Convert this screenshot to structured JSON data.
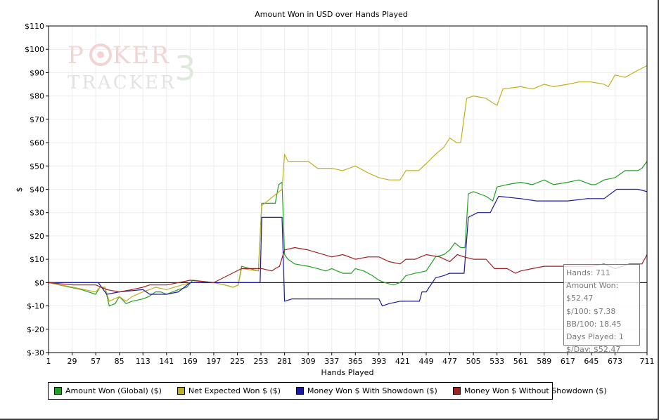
{
  "chart_data": {
    "type": "line",
    "title": "Amount Won in USD over Hands Played",
    "xlabel": "Hands Played",
    "ylabel": "$",
    "xlim": [
      1,
      711
    ],
    "ylim": [
      -30,
      110
    ],
    "x_ticks": [
      1,
      29,
      57,
      85,
      113,
      141,
      169,
      197,
      225,
      253,
      281,
      309,
      337,
      365,
      393,
      421,
      449,
      477,
      505,
      533,
      561,
      589,
      617,
      645,
      673,
      711
    ],
    "y_ticks": [
      {
        "value": 110,
        "label": "$110"
      },
      {
        "value": 100,
        "label": "$100"
      },
      {
        "value": 90,
        "label": "$90"
      },
      {
        "value": 80,
        "label": "$80"
      },
      {
        "value": 70,
        "label": "$70"
      },
      {
        "value": 60,
        "label": "$60"
      },
      {
        "value": 50,
        "label": "$50"
      },
      {
        "value": 40,
        "label": "$40"
      },
      {
        "value": 30,
        "label": "$30"
      },
      {
        "value": 20,
        "label": "$20"
      },
      {
        "value": 10,
        "label": "$10"
      },
      {
        "value": 0,
        "label": "$0"
      },
      {
        "value": -10,
        "label": "$-10"
      },
      {
        "value": -20,
        "label": "$-20"
      },
      {
        "value": -30,
        "label": "$-30"
      }
    ],
    "grid": true,
    "legend_position": "bottom",
    "series": [
      {
        "name": "Amount Won (Global) ($)",
        "color": "#22a022",
        "points": [
          [
            1,
            0
          ],
          [
            20,
            -1.5
          ],
          [
            40,
            -3
          ],
          [
            57,
            -5
          ],
          [
            62,
            -2
          ],
          [
            68,
            -2
          ],
          [
            73,
            -10
          ],
          [
            80,
            -9
          ],
          [
            85,
            -6
          ],
          [
            93,
            -9
          ],
          [
            100,
            -8
          ],
          [
            113,
            -7
          ],
          [
            120,
            -6
          ],
          [
            128,
            -4
          ],
          [
            134,
            -4
          ],
          [
            141,
            -5
          ],
          [
            155,
            -3
          ],
          [
            165,
            -2
          ],
          [
            172,
            1
          ],
          [
            197,
            0
          ],
          [
            210,
            -1
          ],
          [
            220,
            -2
          ],
          [
            226,
            -1
          ],
          [
            230,
            7
          ],
          [
            240,
            6
          ],
          [
            250,
            5
          ],
          [
            254,
            34
          ],
          [
            265,
            34
          ],
          [
            270,
            34
          ],
          [
            274,
            42
          ],
          [
            278,
            43
          ],
          [
            281,
            12
          ],
          [
            285,
            10
          ],
          [
            293,
            8
          ],
          [
            309,
            7
          ],
          [
            320,
            6
          ],
          [
            330,
            5
          ],
          [
            337,
            6
          ],
          [
            350,
            4
          ],
          [
            360,
            4
          ],
          [
            365,
            6
          ],
          [
            375,
            5
          ],
          [
            385,
            3
          ],
          [
            393,
            1
          ],
          [
            400,
            0
          ],
          [
            410,
            -1
          ],
          [
            418,
            0
          ],
          [
            425,
            3
          ],
          [
            436,
            4
          ],
          [
            449,
            5
          ],
          [
            460,
            11
          ],
          [
            470,
            12
          ],
          [
            477,
            14
          ],
          [
            483,
            17
          ],
          [
            490,
            15
          ],
          [
            495,
            15
          ],
          [
            499,
            38
          ],
          [
            505,
            39
          ],
          [
            520,
            37
          ],
          [
            528,
            35
          ],
          [
            533,
            41
          ],
          [
            545,
            42
          ],
          [
            561,
            43
          ],
          [
            575,
            42
          ],
          [
            589,
            44
          ],
          [
            600,
            42
          ],
          [
            617,
            43
          ],
          [
            630,
            44
          ],
          [
            645,
            42
          ],
          [
            650,
            42
          ],
          [
            660,
            44
          ],
          [
            673,
            45
          ],
          [
            685,
            48
          ],
          [
            700,
            48
          ],
          [
            705,
            49
          ],
          [
            711,
            52
          ]
        ]
      },
      {
        "name": "Net Expected Won $ ($)",
        "color": "#c0b020",
        "points": [
          [
            1,
            0
          ],
          [
            30,
            -2
          ],
          [
            57,
            -4
          ],
          [
            62,
            -2
          ],
          [
            68,
            -2
          ],
          [
            73,
            -8
          ],
          [
            85,
            -6
          ],
          [
            93,
            -8
          ],
          [
            100,
            -6
          ],
          [
            113,
            -4
          ],
          [
            121,
            -3
          ],
          [
            128,
            -2
          ],
          [
            141,
            -3
          ],
          [
            150,
            -2
          ],
          [
            169,
            0
          ],
          [
            197,
            0
          ],
          [
            210,
            -1
          ],
          [
            220,
            -2
          ],
          [
            226,
            -1
          ],
          [
            230,
            6
          ],
          [
            250,
            5
          ],
          [
            254,
            33
          ],
          [
            278,
            40
          ],
          [
            281,
            55
          ],
          [
            285,
            52
          ],
          [
            309,
            52
          ],
          [
            320,
            49
          ],
          [
            337,
            49
          ],
          [
            350,
            48
          ],
          [
            365,
            50
          ],
          [
            380,
            47
          ],
          [
            393,
            45
          ],
          [
            405,
            44
          ],
          [
            418,
            44
          ],
          [
            425,
            48
          ],
          [
            440,
            48
          ],
          [
            449,
            51
          ],
          [
            460,
            55
          ],
          [
            470,
            58
          ],
          [
            477,
            62
          ],
          [
            485,
            60
          ],
          [
            490,
            60
          ],
          [
            497,
            79
          ],
          [
            505,
            80
          ],
          [
            520,
            79
          ],
          [
            528,
            77
          ],
          [
            533,
            76
          ],
          [
            540,
            83
          ],
          [
            561,
            84
          ],
          [
            575,
            83
          ],
          [
            589,
            85
          ],
          [
            600,
            84
          ],
          [
            617,
            85
          ],
          [
            630,
            86
          ],
          [
            645,
            86
          ],
          [
            660,
            85
          ],
          [
            665,
            84
          ],
          [
            673,
            89
          ],
          [
            685,
            88
          ],
          [
            700,
            91
          ],
          [
            711,
            93
          ]
        ]
      },
      {
        "name": "Money Won $ With Showdown ($)",
        "color": "#1a1aa0",
        "points": [
          [
            1,
            0
          ],
          [
            60,
            0
          ],
          [
            70,
            -5
          ],
          [
            85,
            -4
          ],
          [
            113,
            -3
          ],
          [
            121,
            -5
          ],
          [
            141,
            -5
          ],
          [
            155,
            -4
          ],
          [
            169,
            0
          ],
          [
            197,
            0
          ],
          [
            225,
            0
          ],
          [
            252,
            0
          ],
          [
            254,
            28
          ],
          [
            278,
            28
          ],
          [
            281,
            -8
          ],
          [
            290,
            -7
          ],
          [
            309,
            -7
          ],
          [
            337,
            -7
          ],
          [
            365,
            -7
          ],
          [
            393,
            -7
          ],
          [
            397,
            -10
          ],
          [
            405,
            -9
          ],
          [
            418,
            -8
          ],
          [
            441,
            -8
          ],
          [
            444,
            -4
          ],
          [
            449,
            -4
          ],
          [
            460,
            2
          ],
          [
            470,
            3
          ],
          [
            477,
            4
          ],
          [
            485,
            4
          ],
          [
            494,
            4
          ],
          [
            499,
            28
          ],
          [
            510,
            30
          ],
          [
            525,
            30
          ],
          [
            535,
            37
          ],
          [
            561,
            36
          ],
          [
            580,
            35
          ],
          [
            600,
            35
          ],
          [
            617,
            35
          ],
          [
            640,
            36
          ],
          [
            660,
            36
          ],
          [
            675,
            40
          ],
          [
            700,
            40
          ],
          [
            711,
            39
          ]
        ]
      },
      {
        "name": "Money Won $ Without Showdown ($)",
        "color": "#a02020",
        "points": [
          [
            1,
            0
          ],
          [
            30,
            -1
          ],
          [
            57,
            -1
          ],
          [
            70,
            -3
          ],
          [
            85,
            -4
          ],
          [
            100,
            -3
          ],
          [
            113,
            -2
          ],
          [
            121,
            -1
          ],
          [
            141,
            -1
          ],
          [
            155,
            0
          ],
          [
            169,
            1
          ],
          [
            197,
            0
          ],
          [
            230,
            6
          ],
          [
            254,
            6
          ],
          [
            266,
            5
          ],
          [
            270,
            6
          ],
          [
            275,
            7
          ],
          [
            281,
            14
          ],
          [
            293,
            15
          ],
          [
            309,
            14
          ],
          [
            337,
            11
          ],
          [
            350,
            12
          ],
          [
            365,
            10
          ],
          [
            380,
            11
          ],
          [
            393,
            11
          ],
          [
            405,
            9
          ],
          [
            418,
            8
          ],
          [
            425,
            10
          ],
          [
            436,
            10
          ],
          [
            449,
            12
          ],
          [
            465,
            11
          ],
          [
            477,
            9
          ],
          [
            486,
            12
          ],
          [
            494,
            11
          ],
          [
            505,
            10
          ],
          [
            520,
            10
          ],
          [
            530,
            6
          ],
          [
            545,
            6
          ],
          [
            555,
            4
          ],
          [
            561,
            5
          ],
          [
            575,
            6
          ],
          [
            589,
            7
          ],
          [
            617,
            7
          ],
          [
            645,
            7
          ],
          [
            660,
            8
          ],
          [
            673,
            6
          ],
          [
            690,
            8
          ],
          [
            700,
            8
          ],
          [
            705,
            8
          ],
          [
            711,
            12
          ]
        ]
      }
    ]
  },
  "tooltip": {
    "lines": [
      "Hands: 711",
      "Amount Won: $52.47",
      "$/100: $7.38",
      "BB/100: 18.45",
      "Days Played: 1",
      "$/Day: $52.47"
    ]
  },
  "logo": {
    "line1": "POKER",
    "line2": "TRACKER",
    "badge": "3"
  }
}
